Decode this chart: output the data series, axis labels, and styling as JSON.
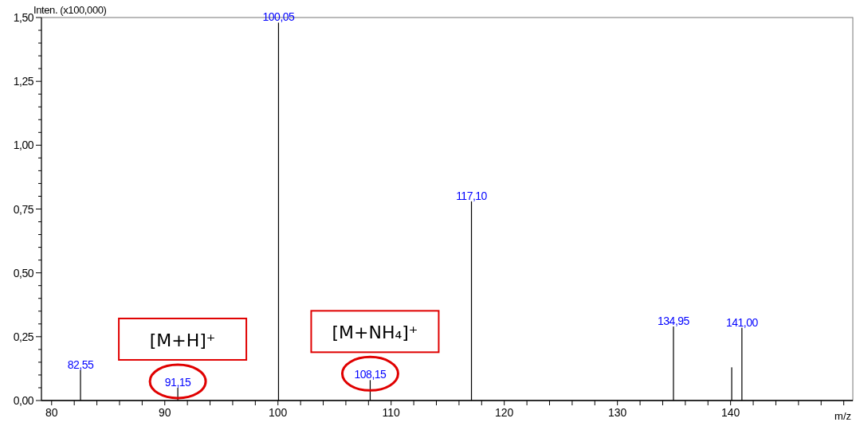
{
  "chart_data": {
    "type": "bar",
    "xlabel": "m/z",
    "ylabel": "Inten. (x100,000)",
    "x": [
      82.55,
      91.15,
      100.05,
      108.15,
      117.1,
      134.95,
      140.1,
      141.0
    ],
    "values": [
      0.12,
      0.05,
      1.48,
      0.08,
      0.78,
      0.29,
      0.13,
      0.285
    ],
    "color": "#000000",
    "xlim": [
      79.1,
      150.8
    ],
    "xticks": [
      80,
      {
        "value": 82,
        "label": null
      },
      {
        "value": 84,
        "label": null
      },
      {
        "value": 86,
        "label": null
      },
      {
        "value": 88,
        "label": null
      },
      90,
      {
        "value": 92,
        "label": null
      },
      {
        "value": 94,
        "label": null
      },
      {
        "value": 96,
        "label": null
      },
      {
        "value": 98,
        "label": null
      },
      100,
      {
        "value": 102,
        "label": null
      },
      {
        "value": 104,
        "label": null
      },
      {
        "value": 106,
        "label": null
      },
      {
        "value": 108,
        "label": null
      },
      110,
      {
        "value": 112,
        "label": null
      },
      {
        "value": 114,
        "label": null
      },
      {
        "value": 116,
        "label": null
      },
      {
        "value": 118,
        "label": null
      },
      120,
      {
        "value": 122,
        "label": null
      },
      {
        "value": 124,
        "label": null
      },
      {
        "value": 126,
        "label": null
      },
      {
        "value": 128,
        "label": null
      },
      130,
      {
        "value": 132,
        "label": null
      },
      {
        "value": 134,
        "label": null
      },
      {
        "value": 136,
        "label": null
      },
      {
        "value": 138,
        "label": null
      },
      140,
      {
        "value": 142,
        "label": null
      },
      {
        "value": 144,
        "label": null
      },
      {
        "value": 146,
        "label": null
      },
      {
        "value": 148,
        "label": null
      },
      {
        "value": 150,
        "label": null
      }
    ],
    "ylim": [
      0,
      1.5
    ],
    "yticks": [
      {
        "value": 0,
        "label": "0,00"
      },
      {
        "value": 0.05,
        "label": null
      },
      {
        "value": 0.1,
        "label": null
      },
      {
        "value": 0.15,
        "label": null
      },
      {
        "value": 0.2,
        "label": null
      },
      {
        "value": 0.25,
        "label": "0,25"
      },
      {
        "value": 0.3,
        "label": null
      },
      {
        "value": 0.35,
        "label": null
      },
      {
        "value": 0.4,
        "label": null
      },
      {
        "value": 0.45,
        "label": null
      },
      {
        "value": 0.5,
        "label": "0,50"
      },
      {
        "value": 0.55,
        "label": null
      },
      {
        "value": 0.6,
        "label": null
      },
      {
        "value": 0.65,
        "label": null
      },
      {
        "value": 0.7,
        "label": null
      },
      {
        "value": 0.75,
        "label": "0,75"
      },
      {
        "value": 0.8,
        "label": null
      },
      {
        "value": 0.85,
        "label": null
      },
      {
        "value": 0.9,
        "label": null
      },
      {
        "value": 0.95,
        "label": null
      },
      {
        "value": 1.0,
        "label": "1,00"
      },
      {
        "value": 1.05,
        "label": null
      },
      {
        "value": 1.1,
        "label": null
      },
      {
        "value": 1.15,
        "label": null
      },
      {
        "value": 1.2,
        "label": null
      },
      {
        "value": 1.25,
        "label": "1,25"
      },
      {
        "value": 1.3,
        "label": null
      },
      {
        "value": 1.35,
        "label": null
      },
      {
        "value": 1.4,
        "label": null
      },
      {
        "value": 1.45,
        "label": null
      },
      {
        "value": 1.5,
        "label": "1,50"
      }
    ],
    "annotations": [
      {
        "text": "82,55",
        "x": 82.55,
        "y": 0.12
      },
      {
        "text": "91,15",
        "x": 91.15,
        "y": 0.05
      },
      {
        "text": "100,05",
        "x": 100.05,
        "y": 1.48
      },
      {
        "text": "108,15",
        "x": 108.15,
        "y": 0.08
      },
      {
        "text": "117,10",
        "x": 117.1,
        "y": 0.78
      },
      {
        "text": "134,95",
        "x": 134.95,
        "y": 0.29
      },
      {
        "text": "141,00",
        "x": 141.0,
        "y": 0.285
      },
      {
        "text": "[M+H]⁺",
        "x": 91.15,
        "y": 0.05
      },
      {
        "text": "[M+NH₄]⁺",
        "x": 108.15,
        "y": 0.08
      }
    ]
  }
}
